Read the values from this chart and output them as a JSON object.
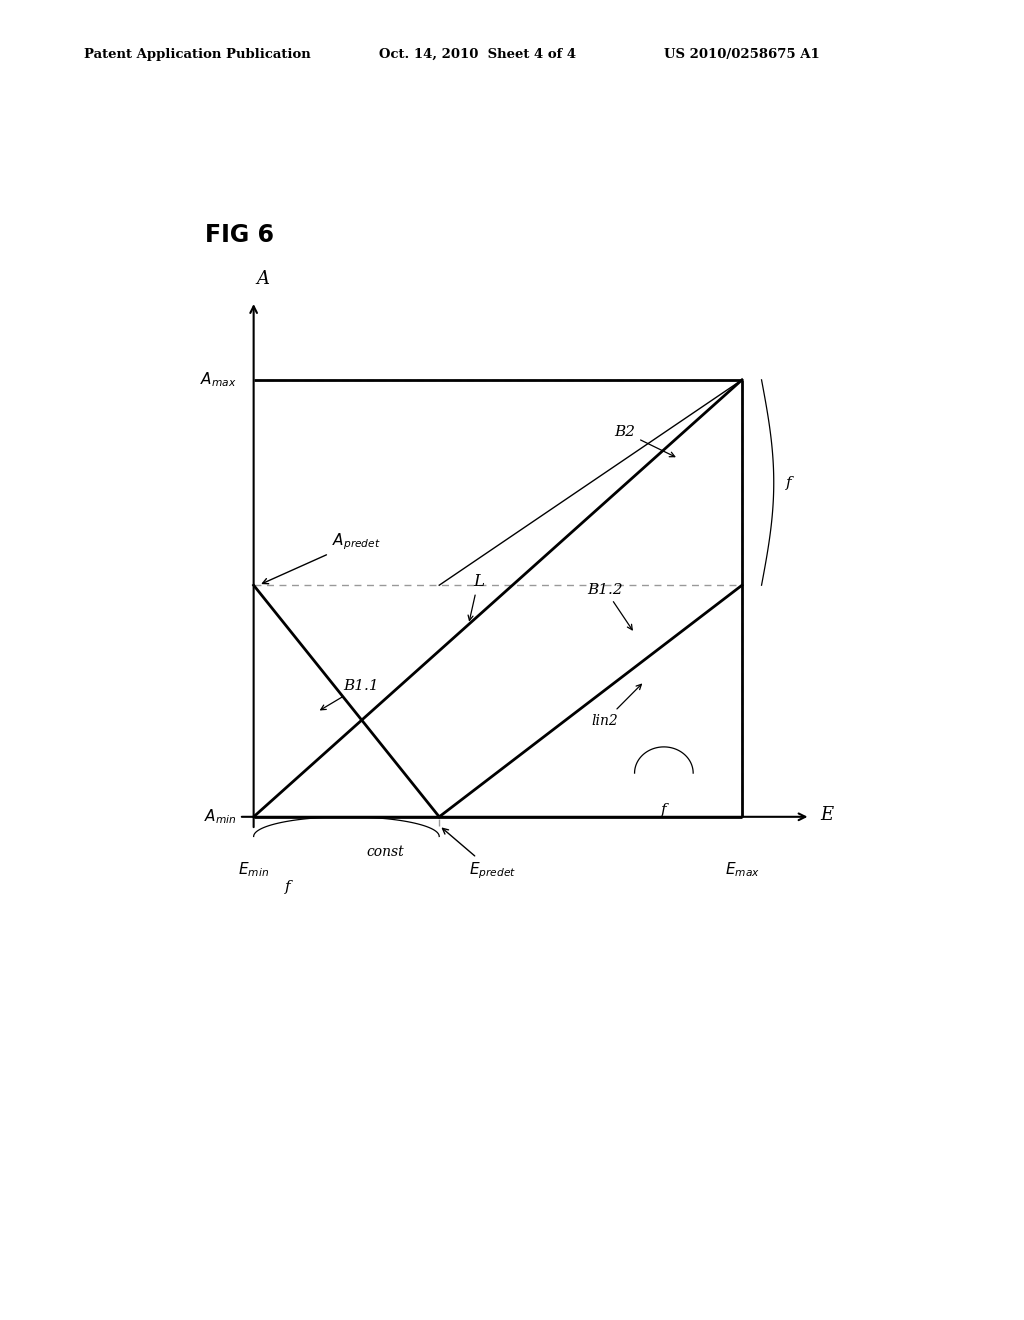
{
  "header_left": "Patent Application Publication",
  "header_mid": "Oct. 14, 2010  Sheet 4 of 4",
  "header_right": "US 2010/0258675 A1",
  "fig_label": "FIG 6",
  "bg_color": "#ffffff",
  "Ep": 0.38,
  "Ap": 0.53,
  "lw_thick": 2.0,
  "lw_thin": 1.0,
  "gray_dash": "#999999"
}
